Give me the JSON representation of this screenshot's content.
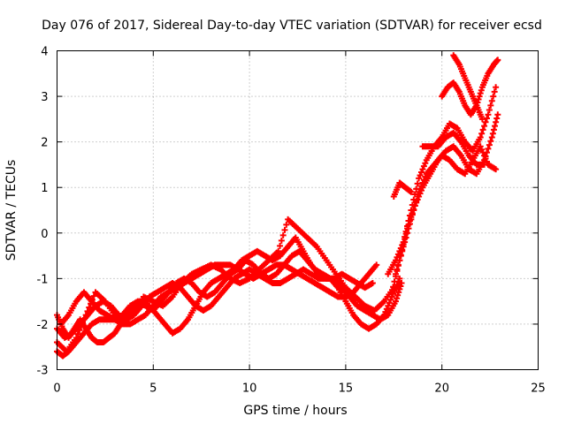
{
  "chart_data": {
    "type": "scatter",
    "title": "Day 076 of 2017, Sidereal Day-to-day VTEC variation (SDTVAR) for receiver ecsd",
    "xlabel": "GPS time / hours",
    "ylabel": "SDTVAR / TECUs",
    "xlim": [
      0,
      25
    ],
    "ylim": [
      -3,
      4
    ],
    "xticks": [
      "0",
      "5",
      "10",
      "15",
      "20",
      "25"
    ],
    "yticks": [
      "-3",
      "-2",
      "-1",
      "0",
      "1",
      "2",
      "3",
      "4"
    ],
    "grid": true,
    "marker": "plus",
    "color": "#ff0000",
    "series": [
      {
        "x": [
          0.0,
          0.3,
          0.6,
          1.0,
          1.4,
          1.8,
          2.2,
          2.6,
          3.0,
          3.4,
          3.8,
          4.2,
          4.6,
          5.0,
          5.4,
          5.8,
          6.2,
          6.6,
          7.0,
          7.4,
          7.8,
          8.2,
          8.6,
          9.0,
          9.4,
          9.8,
          10.2,
          10.6,
          11.0,
          11.4,
          11.8,
          12.2,
          12.6,
          13.0,
          13.4,
          13.8,
          14.2,
          14.6,
          15.0,
          15.4,
          15.8,
          16.2,
          16.6
        ],
        "y": [
          -2.6,
          -2.7,
          -2.6,
          -2.4,
          -2.2,
          -2.0,
          -1.9,
          -1.9,
          -1.9,
          -2.0,
          -2.0,
          -1.9,
          -1.8,
          -1.6,
          -1.4,
          -1.3,
          -1.2,
          -1.1,
          -1.0,
          -0.9,
          -0.8,
          -0.7,
          -0.7,
          -0.7,
          -0.8,
          -0.9,
          -1.0,
          -0.9,
          -0.8,
          -0.7,
          -0.7,
          -0.8,
          -0.9,
          -1.0,
          -1.1,
          -1.2,
          -1.3,
          -1.4,
          -1.4,
          -1.3,
          -1.1,
          -0.9,
          -0.7
        ]
      },
      {
        "x": [
          0.0,
          0.4,
          0.8,
          1.2,
          1.6,
          2.0,
          2.4,
          2.8,
          3.2,
          3.6,
          4.0,
          4.4,
          4.8,
          5.2,
          5.6,
          6.0,
          6.4,
          6.8,
          7.2,
          7.6,
          8.0,
          8.4,
          8.8,
          9.2,
          9.6,
          10.0,
          10.4,
          10.8,
          11.2,
          11.6,
          12.0,
          12.4,
          12.8,
          13.2,
          13.6,
          14.0,
          14.4,
          14.8,
          15.2,
          15.6,
          16.0,
          16.4,
          16.8,
          17.2,
          17.6,
          17.9
        ],
        "y": [
          -2.1,
          -2.3,
          -2.2,
          -2.0,
          -1.8,
          -1.6,
          -1.5,
          -1.6,
          -1.8,
          -1.9,
          -1.8,
          -1.6,
          -1.4,
          -1.3,
          -1.2,
          -1.1,
          -1.2,
          -1.4,
          -1.6,
          -1.7,
          -1.6,
          -1.4,
          -1.2,
          -1.0,
          -0.9,
          -0.8,
          -0.9,
          -1.0,
          -1.1,
          -1.1,
          -1.0,
          -0.9,
          -0.8,
          -0.9,
          -1.0,
          -1.0,
          -1.0,
          -1.2,
          -1.4,
          -1.6,
          -1.7,
          -1.8,
          -1.9,
          -1.8,
          -1.5,
          -1.1
        ]
      },
      {
        "x": [
          0.2,
          0.6,
          1.0,
          1.4,
          1.8,
          2.2,
          2.6,
          3.0,
          3.4,
          3.8,
          4.2,
          4.6,
          5.0,
          5.4,
          5.8,
          6.2,
          6.6,
          7.0,
          7.4,
          7.8,
          8.2,
          8.6,
          9.0,
          9.4,
          9.8,
          10.2,
          10.6,
          11.0,
          11.4,
          11.8,
          12.2,
          12.6,
          13.0,
          13.4,
          13.8,
          14.2,
          14.6,
          15.0,
          15.4,
          15.8,
          16.2,
          16.6,
          17.0,
          17.4,
          17.8
        ],
        "y": [
          -2.0,
          -1.8,
          -1.5,
          -1.3,
          -1.5,
          -1.7,
          -1.8,
          -1.9,
          -1.8,
          -1.6,
          -1.5,
          -1.6,
          -1.7,
          -1.5,
          -1.3,
          -1.1,
          -1.0,
          -1.1,
          -1.3,
          -1.4,
          -1.3,
          -1.1,
          -0.9,
          -0.8,
          -0.6,
          -0.7,
          -0.9,
          -1.0,
          -0.9,
          -0.7,
          -0.5,
          -0.4,
          -0.6,
          -0.8,
          -0.9,
          -1.0,
          -1.2,
          -1.5,
          -1.8,
          -2.0,
          -2.1,
          -2.0,
          -1.8,
          -1.4,
          -1.0
        ]
      },
      {
        "x": [
          0.0,
          0.3,
          0.6,
          0.9,
          1.2,
          1.5,
          1.8,
          2.1,
          2.4,
          2.7,
          3.0,
          3.3,
          3.6,
          4.0,
          4.4,
          4.8,
          5.2,
          5.6,
          6.0,
          6.4,
          6.8,
          7.2,
          7.6,
          8.0,
          8.4,
          8.8,
          9.2,
          9.6,
          10.0,
          10.4,
          10.8,
          11.2,
          11.6,
          12.0,
          12.4,
          12.8,
          13.2,
          13.6,
          14.0,
          14.4,
          14.8,
          15.2,
          15.6,
          16.0,
          16.4
        ],
        "y": [
          -1.8,
          -2.1,
          -2.3,
          -2.1,
          -1.9,
          -2.1,
          -2.3,
          -2.4,
          -2.4,
          -2.3,
          -2.2,
          -2.0,
          -1.8,
          -1.6,
          -1.5,
          -1.6,
          -1.8,
          -2.0,
          -2.2,
          -2.1,
          -1.9,
          -1.6,
          -1.3,
          -1.1,
          -1.0,
          -0.9,
          -0.8,
          -0.6,
          -0.5,
          -0.4,
          -0.5,
          -0.6,
          -0.5,
          -0.3,
          -0.1,
          -0.4,
          -0.7,
          -0.9,
          -1.0,
          -1.0,
          -0.9,
          -1.0,
          -1.1,
          -1.2,
          -1.1
        ]
      },
      {
        "x": [
          0.0,
          0.5,
          1.0,
          1.5,
          2.0,
          2.5,
          3.0,
          3.5,
          4.0,
          4.5,
          5.0,
          5.5,
          6.0,
          6.5,
          7.0,
          7.5,
          8.0,
          8.5,
          9.0,
          9.5,
          10.0,
          10.5,
          11.0,
          11.5,
          12.0,
          12.5,
          13.0,
          13.5,
          14.0,
          14.5,
          15.0,
          15.5,
          16.0,
          16.5,
          17.0,
          17.5
        ],
        "y": [
          -2.4,
          -2.6,
          -2.3,
          -1.8,
          -1.3,
          -1.5,
          -1.8,
          -1.9,
          -1.7,
          -1.4,
          -1.5,
          -1.6,
          -1.4,
          -1.1,
          -0.9,
          -0.8,
          -0.7,
          -0.8,
          -1.0,
          -1.1,
          -1.0,
          -0.8,
          -0.6,
          -0.4,
          0.3,
          0.1,
          -0.1,
          -0.3,
          -0.6,
          -0.9,
          -1.2,
          -1.4,
          -1.6,
          -1.7,
          -1.5,
          -1.2
        ]
      },
      {
        "x": [
          17.4,
          17.8,
          18.2,
          18.6,
          19.0,
          19.4,
          19.8,
          20.2,
          20.6,
          21.0,
          21.4,
          21.8,
          22.2,
          22.6,
          22.9
        ],
        "y": [
          -1.3,
          -0.6,
          0.1,
          0.6,
          1.0,
          1.3,
          1.6,
          1.8,
          1.9,
          1.7,
          1.4,
          1.3,
          1.6,
          2.1,
          2.6
        ]
      },
      {
        "x": [
          17.6,
          18.0,
          18.4,
          18.8,
          19.2,
          19.6,
          20.0,
          20.4,
          20.8,
          21.2,
          21.6,
          22.0,
          22.4,
          22.8
        ],
        "y": [
          -0.9,
          -0.3,
          0.3,
          0.9,
          1.3,
          1.5,
          1.7,
          1.6,
          1.4,
          1.3,
          1.6,
          1.9,
          1.5,
          1.4
        ]
      },
      {
        "x": [
          17.2,
          17.6,
          18.0,
          18.4,
          18.8,
          19.2,
          19.6,
          20.0,
          20.4,
          20.8,
          21.2,
          21.6,
          22.0,
          22.4,
          22.8
        ],
        "y": [
          -0.9,
          -0.6,
          -0.2,
          0.5,
          1.2,
          1.6,
          1.9,
          2.1,
          2.4,
          2.3,
          2.0,
          1.8,
          2.1,
          2.6,
          3.2
        ]
      },
      {
        "x": [
          17.5,
          17.8,
          18.1,
          18.4
        ],
        "y": [
          0.8,
          1.1,
          1.0,
          0.9
        ]
      },
      {
        "x": [
          20.0,
          20.3,
          20.6,
          20.9,
          21.2,
          21.5,
          21.8,
          22.1,
          22.4,
          22.7,
          22.9
        ],
        "y": [
          3.0,
          3.2,
          3.3,
          3.1,
          2.8,
          2.6,
          2.8,
          3.2,
          3.5,
          3.7,
          3.8
        ]
      },
      {
        "x": [
          20.6,
          20.9,
          21.2,
          21.5,
          21.8,
          22.1
        ],
        "y": [
          3.9,
          3.7,
          3.4,
          3.1,
          2.8,
          2.5
        ]
      },
      {
        "x": [
          19.0,
          19.4,
          19.8,
          20.2,
          20.6,
          21.0,
          21.4,
          21.8,
          22.2
        ],
        "y": [
          1.9,
          1.9,
          1.9,
          2.1,
          2.2,
          2.0,
          1.7,
          1.5,
          1.5
        ]
      }
    ]
  }
}
